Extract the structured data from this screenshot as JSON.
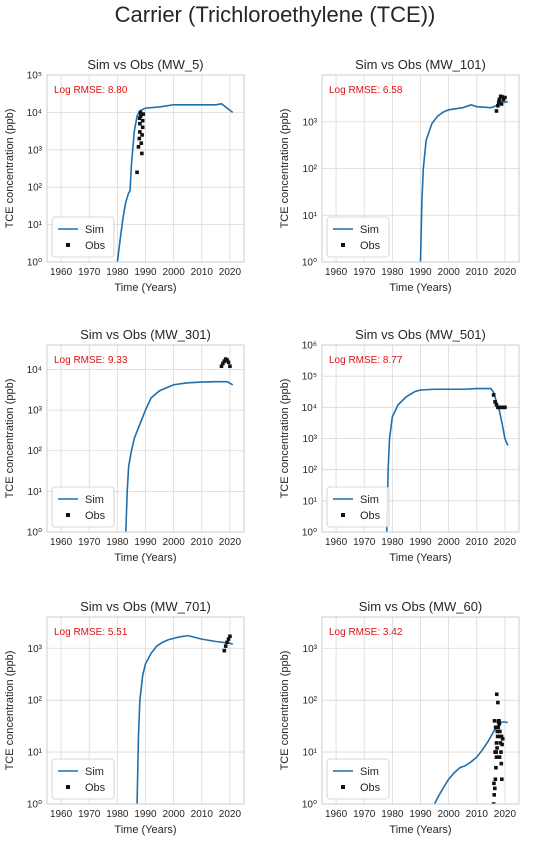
{
  "suptitle": "Carrier (Trichloroethylene (TCE))",
  "colors": {
    "sim": "#1f6fad",
    "obs": "#111111",
    "rmse": "#e01010",
    "grid": "#d9d9d9",
    "frame": "#cccccc"
  },
  "chart_data": [
    {
      "type": "line",
      "title": "Sim vs Obs (MW_5)",
      "xlabel": "Time (Years)",
      "ylabel": "TCE concentration (ppb)",
      "annotation": "Log RMSE: 8.80",
      "yscale": "log",
      "xlim": [
        1955,
        2025
      ],
      "ylim": [
        1,
        100000
      ],
      "xticks": [
        1960,
        1970,
        1980,
        1990,
        2000,
        2010,
        2020
      ],
      "yticks": [
        1,
        10,
        100,
        1000,
        10000,
        100000
      ],
      "legend": [
        "Sim",
        "Obs"
      ],
      "legend_loc": "lower-left",
      "grid": true,
      "series": [
        {
          "name": "Sim",
          "kind": "line",
          "x": [
            1980,
            1981,
            1982,
            1983,
            1984,
            1984.5,
            1985,
            1986,
            1987,
            1988,
            1989,
            1990,
            1995,
            2000,
            2005,
            2010,
            2015,
            2017,
            2019,
            2021
          ],
          "y": [
            1,
            4,
            15,
            40,
            70,
            80,
            400,
            3000,
            8000,
            11000,
            12000,
            13000,
            14000,
            16000,
            16000,
            16000,
            16000,
            17000,
            13000,
            10000
          ]
        },
        {
          "name": "Obs",
          "kind": "scatter",
          "x": [
            1987,
            1987.5,
            1987.8,
            1988,
            1988,
            1988.3,
            1988.5,
            1988.7,
            1989,
            1989,
            1988.2,
            1987.9,
            1989.2,
            1988.8
          ],
          "y": [
            250,
            1200,
            2000,
            3000,
            5000,
            8000,
            1500,
            800,
            4000,
            6000,
            10000,
            7000,
            9000,
            2500
          ]
        }
      ]
    },
    {
      "type": "line",
      "title": "Sim vs Obs (MW_101)",
      "xlabel": "Time (Years)",
      "ylabel": "TCE concentration (ppb)",
      "annotation": "Log RMSE: 6.58",
      "yscale": "log",
      "xlim": [
        1955,
        2025
      ],
      "ylim": [
        1,
        10000
      ],
      "xticks": [
        1960,
        1970,
        1980,
        1990,
        2000,
        2010,
        2020
      ],
      "yticks": [
        1,
        10,
        100,
        1000
      ],
      "legend": [
        "Sim",
        "Obs"
      ],
      "legend_loc": "lower-left",
      "grid": true,
      "series": [
        {
          "name": "Sim",
          "kind": "line",
          "x": [
            1990,
            1990.5,
            1991,
            1992,
            1994,
            1996,
            1998,
            2000,
            2005,
            2008,
            2010,
            2015,
            2017,
            2018,
            2019,
            2020,
            2021
          ],
          "y": [
            1,
            20,
            100,
            400,
            900,
            1300,
            1600,
            1800,
            2000,
            2300,
            2100,
            2000,
            2200,
            2500,
            2800,
            2600,
            2700
          ]
        },
        {
          "name": "Obs",
          "kind": "scatter",
          "x": [
            2017,
            2017.5,
            2018,
            2018.5,
            2019,
            2019.5,
            2020,
            2017.8,
            2018.8
          ],
          "y": [
            1700,
            2200,
            3000,
            3500,
            3400,
            3000,
            3300,
            2600,
            2400
          ]
        }
      ]
    },
    {
      "type": "line",
      "title": "Sim vs Obs (MW_301)",
      "xlabel": "Time (Years)",
      "ylabel": "TCE concentration (ppb)",
      "annotation": "Log RMSE: 9.33",
      "yscale": "log",
      "xlim": [
        1955,
        2025
      ],
      "ylim": [
        1,
        40000
      ],
      "xticks": [
        1960,
        1970,
        1980,
        1990,
        2000,
        2010,
        2020
      ],
      "yticks": [
        1,
        10,
        100,
        1000,
        10000
      ],
      "legend": [
        "Sim",
        "Obs"
      ],
      "legend_loc": "lower-left",
      "grid": true,
      "series": [
        {
          "name": "Sim",
          "kind": "line",
          "x": [
            1983,
            1983.5,
            1984,
            1985,
            1986,
            1988,
            1990,
            1992,
            1995,
            2000,
            2005,
            2010,
            2015,
            2019,
            2021
          ],
          "y": [
            1,
            10,
            40,
            100,
            200,
            450,
            1000,
            2000,
            3000,
            4200,
            4700,
            4900,
            5000,
            5000,
            4200
          ]
        },
        {
          "name": "Obs",
          "kind": "scatter",
          "x": [
            2017,
            2017.5,
            2018,
            2018.5,
            2019,
            2019.5,
            2020
          ],
          "y": [
            12000,
            14000,
            16000,
            18000,
            17000,
            15000,
            12000
          ]
        }
      ]
    },
    {
      "type": "line",
      "title": "Sim vs Obs (MW_501)",
      "xlabel": "Time (Years)",
      "ylabel": "TCE concentration (ppb)",
      "annotation": "Log RMSE: 8.77",
      "yscale": "log",
      "xlim": [
        1955,
        2025
      ],
      "ylim": [
        1,
        1000000
      ],
      "xticks": [
        1960,
        1970,
        1980,
        1990,
        2000,
        2010,
        2020
      ],
      "yticks": [
        1,
        10,
        100,
        1000,
        10000,
        100000,
        1000000
      ],
      "legend": [
        "Sim",
        "Obs"
      ],
      "legend_loc": "lower-left",
      "grid": true,
      "series": [
        {
          "name": "Sim",
          "kind": "line",
          "x": [
            1978,
            1978.5,
            1979,
            1980,
            1982,
            1985,
            1988,
            1990,
            1995,
            2000,
            2005,
            2010,
            2015,
            2016,
            2017,
            2018,
            2019,
            2020,
            2021
          ],
          "y": [
            1,
            100,
            1000,
            5000,
            12000,
            22000,
            32000,
            36000,
            38000,
            38000,
            38000,
            40000,
            40000,
            30000,
            15000,
            8000,
            3000,
            1000,
            600
          ]
        },
        {
          "name": "Obs",
          "kind": "scatter",
          "x": [
            2016,
            2016.5,
            2017,
            2017.5,
            2018,
            2018.5,
            2019,
            2019.5,
            2020
          ],
          "y": [
            25000,
            15000,
            12000,
            10000,
            10000,
            10000,
            10000,
            10000,
            10000
          ]
        }
      ]
    },
    {
      "type": "line",
      "title": "Sim vs Obs (MW_701)",
      "xlabel": "Time (Years)",
      "ylabel": "TCE concentration (ppb)",
      "annotation": "Log RMSE: 5.51",
      "yscale": "log",
      "xlim": [
        1955,
        2025
      ],
      "ylim": [
        1,
        4000
      ],
      "xticks": [
        1960,
        1970,
        1980,
        1990,
        2000,
        2010,
        2020
      ],
      "yticks": [
        1,
        10,
        100,
        1000
      ],
      "legend": [
        "Sim",
        "Obs"
      ],
      "legend_loc": "lower-left",
      "grid": true,
      "series": [
        {
          "name": "Sim",
          "kind": "line",
          "x": [
            1987,
            1987.5,
            1988,
            1989,
            1990,
            1992,
            1994,
            1996,
            1998,
            2000,
            2002,
            2005,
            2007,
            2010,
            2015,
            2020,
            2021
          ],
          "y": [
            1,
            20,
            100,
            300,
            500,
            800,
            1100,
            1300,
            1450,
            1550,
            1650,
            1750,
            1650,
            1500,
            1350,
            1250,
            1200
          ]
        },
        {
          "name": "Obs",
          "kind": "scatter",
          "x": [
            2018,
            2018.5,
            2019,
            2019.5,
            2020
          ],
          "y": [
            900,
            1100,
            1300,
            1500,
            1700
          ]
        }
      ]
    },
    {
      "type": "line",
      "title": "Sim vs Obs (MW_60)",
      "xlabel": "Time (Years)",
      "ylabel": "TCE concentration (ppb)",
      "annotation": "Log RMSE: 3.42",
      "yscale": "log",
      "xlim": [
        1955,
        2025
      ],
      "ylim": [
        1,
        4000
      ],
      "xticks": [
        1960,
        1970,
        1980,
        1990,
        2000,
        2010,
        2020
      ],
      "yticks": [
        1,
        10,
        100,
        1000
      ],
      "legend": [
        "Sim",
        "Obs"
      ],
      "legend_loc": "lower-left",
      "grid": true,
      "series": [
        {
          "name": "Sim",
          "kind": "line",
          "x": [
            1995,
            1996,
            1998,
            2000,
            2002,
            2004,
            2006,
            2008,
            2010,
            2012,
            2014,
            2016,
            2017,
            2018,
            2019,
            2020,
            2021
          ],
          "y": [
            1,
            1.3,
            2,
            3,
            4,
            5,
            5.5,
            6.5,
            8,
            11,
            16,
            25,
            30,
            35,
            38,
            38,
            37
          ]
        },
        {
          "name": "Obs",
          "kind": "scatter",
          "x": [
            2016,
            2016.2,
            2016.4,
            2016.6,
            2016.8,
            2017,
            2017.2,
            2017.4,
            2017.6,
            2017.8,
            2018,
            2018.2,
            2018.4,
            2018.6,
            2018.8,
            2019,
            2016.3,
            2016.7,
            2017.1,
            2017.5,
            2017.9,
            2018.3,
            2016.5,
            2017.3,
            2018.1,
            2018.7,
            2019.2,
            2016.1,
            2017.7,
            2018.9,
            2017.0,
            2016.9
          ],
          "y": [
            1,
            1.5,
            2,
            3,
            5,
            8,
            12,
            20,
            30,
            40,
            35,
            25,
            15,
            10,
            20,
            14,
            40,
            30,
            130,
            90,
            40,
            20,
            10,
            25,
            8,
            6,
            18,
            2.5,
            38,
            3,
            15,
            10
          ]
        }
      ]
    }
  ]
}
